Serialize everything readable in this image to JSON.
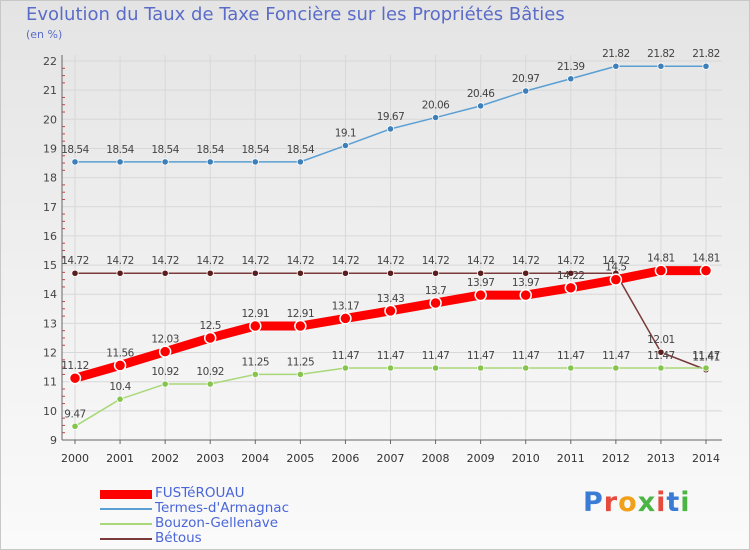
{
  "title": "Evolution du Taux de Taxe Foncière sur les Propriétés Bâties",
  "unit_label": "(en %)",
  "logo": {
    "text": "Proxiti",
    "colors": [
      "#3a7bd5",
      "#e64a3c",
      "#f2a019",
      "#4bb543",
      "#e64a3c",
      "#3a7bd5",
      "#4bb543"
    ]
  },
  "chart_data": {
    "type": "line",
    "title": "Evolution du Taux de Taxe Foncière sur les Propriétés Bâties",
    "ylabel": "(en %)",
    "xlabel": "",
    "ylim": [
      9,
      22
    ],
    "yticks": [
      "9",
      "10",
      "11",
      "12",
      "13",
      "14",
      "15",
      "16",
      "17",
      "18",
      "19",
      "20",
      "21",
      "22"
    ],
    "x": [
      "2000",
      "2001",
      "2002",
      "2003",
      "2004",
      "2005",
      "2006",
      "2007",
      "2008",
      "2009",
      "2010",
      "2011",
      "2012",
      "2013",
      "2014"
    ],
    "grid": true,
    "series": [
      {
        "name": "Termes-d'Armagnac",
        "color": "#5a9fd4",
        "marker": "#3d7fb8",
        "values": [
          18.54,
          18.54,
          18.54,
          18.54,
          18.54,
          18.54,
          19.1,
          19.67,
          20.06,
          20.46,
          20.97,
          21.39,
          21.82,
          21.82,
          21.82
        ],
        "labels": [
          "18.54",
          "18.54",
          "18.54",
          "18.54",
          "18.54",
          "18.54",
          "19.1",
          "19.67",
          "20.06",
          "20.46",
          "20.97",
          "21.39",
          "21.82",
          "21.82",
          "21.82"
        ]
      },
      {
        "name": "Bétous",
        "color": "#7a3a3a",
        "marker": "#5a1e1e",
        "values": [
          14.72,
          14.72,
          14.72,
          14.72,
          14.72,
          14.72,
          14.72,
          14.72,
          14.72,
          14.72,
          14.72,
          14.72,
          14.72,
          12.01,
          11.41
        ],
        "labels": [
          "14.72",
          "14.72",
          "14.72",
          "14.72",
          "14.72",
          "14.72",
          "14.72",
          "14.72",
          "14.72",
          "14.72",
          "14.72",
          "14.72",
          "14.72",
          "12.01",
          "11.41"
        ]
      },
      {
        "name": "Bouzon-Gellenave",
        "color": "#a8d878",
        "marker": "#86c44e",
        "values": [
          9.47,
          10.4,
          10.92,
          10.92,
          11.25,
          11.25,
          11.47,
          11.47,
          11.47,
          11.47,
          11.47,
          11.47,
          11.47,
          11.47,
          11.47
        ],
        "labels": [
          "9.47",
          "10.4",
          "10.92",
          "10.92",
          "11.25",
          "11.25",
          "11.47",
          "11.47",
          "11.47",
          "11.47",
          "11.47",
          "11.47",
          "11.47",
          "11.47",
          "11.47"
        ]
      },
      {
        "name": "FUSTéROUAU",
        "color": "#ff0000",
        "marker": "#ff0000",
        "emphasis": true,
        "values": [
          11.12,
          11.56,
          12.03,
          12.5,
          12.91,
          12.91,
          13.17,
          13.43,
          13.7,
          13.97,
          13.97,
          14.22,
          14.5,
          14.81,
          14.81
        ],
        "labels": [
          "11.12",
          "11.56",
          "12.03",
          "12.5",
          "12.91",
          "12.91",
          "13.17",
          "13.43",
          "13.7",
          "13.97",
          "13.97",
          "14.22",
          "14.5",
          "14.81",
          "14.81"
        ]
      }
    ],
    "legend": [
      {
        "name": "FUSTéROUAU",
        "color": "#ff0000",
        "emphasis": true
      },
      {
        "name": "Termes-d'Armagnac",
        "color": "#5a9fd4",
        "emphasis": false
      },
      {
        "name": "Bouzon-Gellenave",
        "color": "#a8d878",
        "emphasis": false
      },
      {
        "name": "Bétous",
        "color": "#7a3a3a",
        "emphasis": false
      }
    ],
    "legend_position": "bottom-left"
  }
}
